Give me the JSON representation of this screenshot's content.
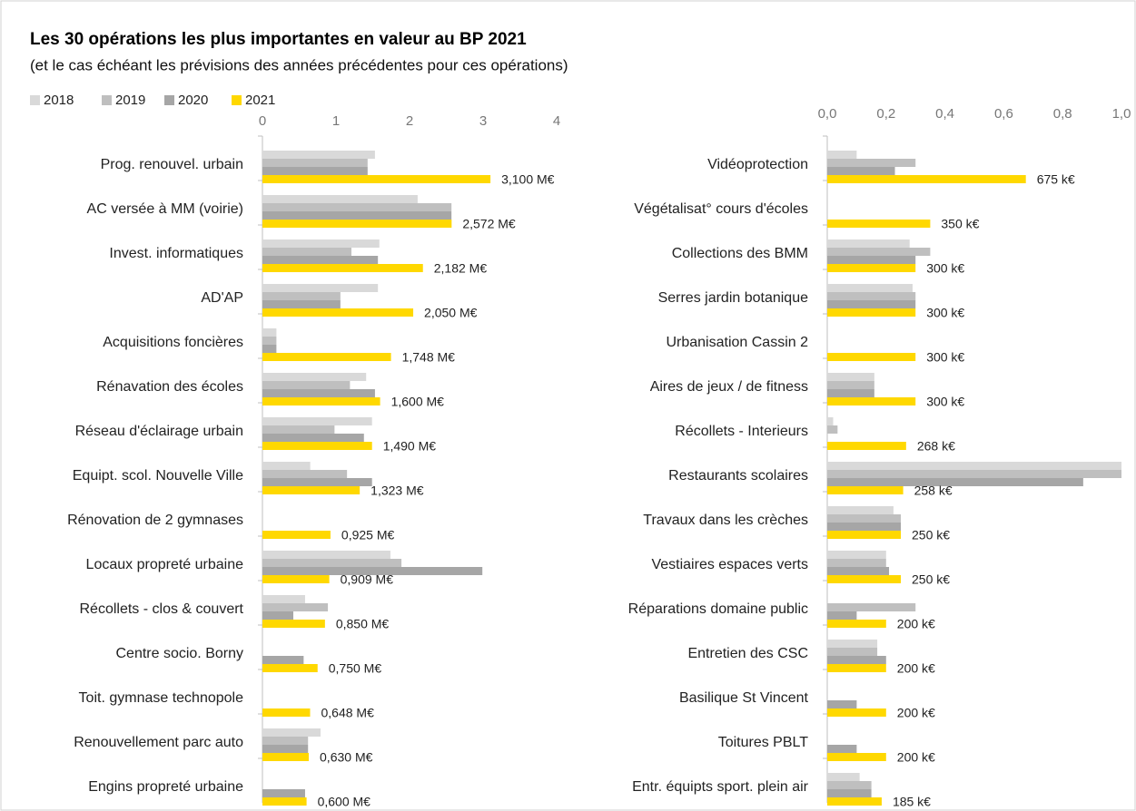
{
  "title": "Les  30 opérations les plus importantes en valeur au BP 2021",
  "subtitle": "(et le cas échéant les prévisions des années précédentes pour ces opérations)",
  "chart_data": [
    {
      "type": "bar",
      "orientation": "horizontal",
      "categories": [
        "Prog. renouvel. urbain",
        "AC versée à MM (voirie)",
        "Invest. informatiques",
        "AD'AP",
        "Acquisitions foncières",
        "Rénavation des écoles",
        "Réseau d'éclairage urbain",
        "Equipt. scol. Nouvelle Ville",
        "Rénovation de 2 gymnases",
        "Locaux propreté urbaine",
        "Récollets - clos & couvert",
        "Centre socio. Borny",
        "Toit. gymnase technopole",
        "Renouvellement parc auto",
        "Engins propreté urbaine"
      ],
      "series": [
        {
          "name": "2018",
          "color": "#d9d9d9",
          "values": [
            1.53,
            2.11,
            1.59,
            1.57,
            0.19,
            1.41,
            1.49,
            0.65,
            null,
            1.74,
            0.58,
            null,
            null,
            0.79,
            null
          ]
        },
        {
          "name": "2019",
          "color": "#bfbfbf",
          "values": [
            1.43,
            2.57,
            1.21,
            1.06,
            0.19,
            1.19,
            0.98,
            1.15,
            null,
            1.89,
            0.89,
            null,
            null,
            0.62,
            null
          ]
        },
        {
          "name": "2020",
          "color": "#a6a6a6",
          "values": [
            1.43,
            2.57,
            1.57,
            1.06,
            0.19,
            1.53,
            1.38,
            1.49,
            null,
            2.99,
            0.42,
            0.56,
            null,
            0.62,
            0.58
          ]
        },
        {
          "name": "2021",
          "color": "#ffd800",
          "values": [
            3.1,
            2.572,
            2.182,
            2.05,
            1.748,
            1.6,
            1.49,
            1.323,
            0.925,
            0.909,
            0.85,
            0.75,
            0.648,
            0.63,
            0.6
          ],
          "value_labels": [
            "3,100 M€",
            "2,572 M€",
            "2,182 M€",
            "2,050 M€",
            "1,748 M€",
            "1,600 M€",
            "1,490 M€",
            "1,323 M€",
            "0,925 M€",
            "0,909 M€",
            "0,850 M€",
            "0,750 M€",
            "0,648 M€",
            "0,630 M€",
            "0,600 M€"
          ]
        }
      ],
      "xlim": [
        0,
        4
      ],
      "xticks": [
        0,
        1,
        2,
        3,
        4
      ]
    },
    {
      "type": "bar",
      "orientation": "horizontal",
      "categories": [
        "Vidéoprotection",
        "Végétalisat° cours d'écoles",
        "Collections des BMM",
        "Serres jardin botanique",
        "Urbanisation Cassin 2",
        "Aires de jeux / de fitness",
        "Récollets - Interieurs",
        "Restaurants scolaires",
        "Travaux dans les crèches",
        "Vestiaires espaces verts",
        "Réparations domaine public",
        "Entretien des CSC",
        "Basilique St Vincent",
        "Toitures PBLT",
        "Entr. équipts sport. plein air"
      ],
      "series": [
        {
          "color": "#d9d9d9",
          "values": [
            0.1,
            null,
            0.28,
            0.29,
            null,
            0.16,
            0.02,
            1.0,
            0.225,
            0.2,
            null,
            0.17,
            null,
            null,
            0.11
          ]
        },
        {
          "color": "#bfbfbf",
          "values": [
            0.3,
            null,
            0.35,
            0.3,
            null,
            0.16,
            0.035,
            1.0,
            0.25,
            0.2,
            0.3,
            0.17,
            null,
            null,
            0.15
          ]
        },
        {
          "color": "#a6a6a6",
          "values": [
            0.23,
            null,
            0.3,
            0.3,
            null,
            0.16,
            null,
            0.87,
            0.25,
            0.21,
            0.1,
            0.2,
            0.1,
            0.1,
            0.15
          ]
        },
        {
          "color": "#ffd800",
          "values": [
            0.675,
            0.35,
            0.3,
            0.3,
            0.3,
            0.3,
            0.268,
            0.258,
            0.25,
            0.25,
            0.2,
            0.2,
            0.2,
            0.2,
            0.185
          ],
          "value_labels": [
            "675 k€",
            "350 k€",
            "300 k€",
            "300 k€",
            "300 k€",
            "300 k€",
            "268 k€",
            "258 k€",
            "250 k€",
            "250 k€",
            "200 k€",
            "200 k€",
            "200 k€",
            "200 k€",
            "185 k€"
          ]
        }
      ],
      "xlim": [
        0,
        1
      ],
      "xticks": [
        {
          "value": 0,
          "label": "0,0"
        },
        {
          "value": 0.2,
          "label": "0,2"
        },
        {
          "value": 0.4,
          "label": "0,4"
        },
        {
          "value": 0.6,
          "label": "0,6"
        },
        {
          "value": 0.8,
          "label": "0,8"
        },
        {
          "value": 1,
          "label": "1,0"
        }
      ]
    }
  ]
}
